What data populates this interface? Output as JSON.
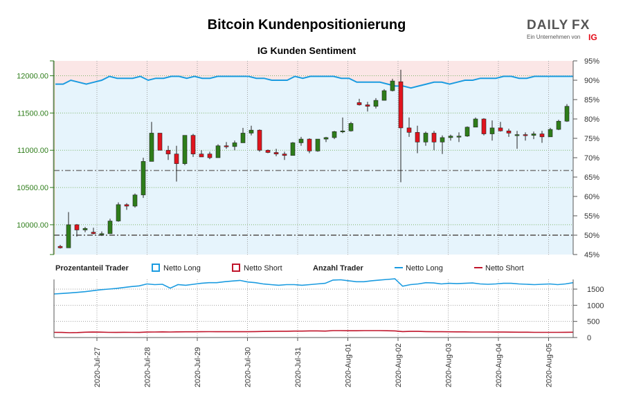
{
  "header": {
    "title": "Bitcoin Kundenpositionierung",
    "subtitle": "IG Kunden Sentiment"
  },
  "logo": {
    "text_left": "DAILY",
    "text_right": "FX",
    "tagline": "Ein Unternehmen von",
    "ig": "IG",
    "accent_color": "#e30613"
  },
  "legend": {
    "pct_header": "Prozentanteil Trader",
    "pct_long": "Netto Long",
    "pct_short": "Netto Short",
    "count_header": "Anzahl Trader",
    "count_long": "Netto Long",
    "count_short": "Netto Short"
  },
  "colors": {
    "long": "#1a9be0",
    "short": "#c0142a",
    "up_candle": "#2e7d1a",
    "down_candle": "#e0141e",
    "long_fill": "#e6f4fc",
    "short_fill": "#fbe6e6"
  },
  "chart_data": [
    {
      "type": "candlestick",
      "title": "IG Kunden Sentiment",
      "y_left_ticks": [
        "10000.00",
        "10500.00",
        "11000.00",
        "11500.00",
        "12000.00"
      ],
      "y_right_ticks": [
        "45%",
        "50%",
        "55%",
        "60%",
        "65%",
        "70%",
        "75%",
        "80%",
        "85%",
        "90%",
        "95%"
      ],
      "ylim_price": [
        9600,
        12200
      ],
      "ylim_pct": [
        45,
        95
      ],
      "grid": true,
      "reference_lines_pct": [
        50,
        66.7
      ],
      "net_long_pct": [
        89,
        89,
        90,
        89.5,
        89,
        89.5,
        90,
        91,
        90.5,
        90.5,
        90.5,
        91,
        90,
        90.5,
        90.5,
        91,
        91,
        90.5,
        91,
        90.5,
        90.5,
        91,
        91,
        91,
        91,
        91,
        90.5,
        90.5,
        90,
        90,
        90,
        91,
        90.5,
        91,
        91,
        91,
        91,
        90.5,
        90.5,
        89.5,
        89.5,
        89.5,
        89.5,
        89,
        88.5,
        88.5,
        88,
        88.5,
        89,
        89.5,
        89.5,
        89,
        89.5,
        90,
        90,
        90.5,
        90.5,
        90.5,
        91,
        91,
        90.5,
        90.5,
        91,
        91,
        91,
        91,
        91,
        91
      ],
      "candles": [
        [
          9710,
          9730,
          9680,
          9690
        ],
        [
          9690,
          10170,
          9690,
          10000
        ],
        [
          10000,
          10010,
          9840,
          9930
        ],
        [
          9930,
          9970,
          9900,
          9950
        ],
        [
          9900,
          9960,
          9870,
          9880
        ],
        [
          9880,
          9910,
          9850,
          9880
        ],
        [
          9880,
          10080,
          9880,
          10050
        ],
        [
          10050,
          10300,
          10040,
          10270
        ],
        [
          10270,
          10290,
          10200,
          10250
        ],
        [
          10250,
          10420,
          10230,
          10400
        ],
        [
          10400,
          10900,
          10360,
          10850
        ],
        [
          10850,
          11380,
          10850,
          11230
        ],
        [
          11230,
          11230,
          11000,
          11000
        ],
        [
          11000,
          11060,
          10870,
          10950
        ],
        [
          10950,
          11060,
          10580,
          10820
        ],
        [
          10820,
          11200,
          10800,
          11200
        ],
        [
          11200,
          11220,
          10910,
          10950
        ],
        [
          10950,
          11000,
          10920,
          10910
        ],
        [
          10950,
          10980,
          10880,
          10900
        ],
        [
          10900,
          11080,
          10900,
          11060
        ],
        [
          11060,
          11110,
          11020,
          11050
        ],
        [
          11050,
          11130,
          11000,
          11100
        ],
        [
          11100,
          11300,
          11100,
          11230
        ],
        [
          11230,
          11330,
          11200,
          11270
        ],
        [
          11270,
          11280,
          10980,
          11000
        ],
        [
          11000,
          11010,
          10960,
          10970
        ],
        [
          10970,
          11020,
          10920,
          10950
        ],
        [
          10950,
          10980,
          10870,
          10930
        ],
        [
          10930,
          11110,
          10930,
          11100
        ],
        [
          11100,
          11180,
          11060,
          11150
        ],
        [
          11150,
          11160,
          10960,
          10990
        ],
        [
          10990,
          11150,
          10980,
          11150
        ],
        [
          11150,
          11180,
          11110,
          11170
        ],
        [
          11170,
          11260,
          11150,
          11250
        ],
        [
          11250,
          11440,
          11230,
          11260
        ],
        [
          11260,
          11380,
          11250,
          11360
        ],
        [
          11640,
          11690,
          11600,
          11610
        ],
        [
          11610,
          11650,
          11520,
          11590
        ],
        [
          11590,
          11700,
          11560,
          11670
        ],
        [
          11670,
          11820,
          11670,
          11800
        ],
        [
          11800,
          11960,
          11790,
          11930
        ],
        [
          11920,
          12080,
          10570,
          11300
        ],
        [
          11300,
          11440,
          11180,
          11240
        ],
        [
          11240,
          11330,
          10960,
          11110
        ],
        [
          11110,
          11250,
          11060,
          11230
        ],
        [
          11230,
          11260,
          11000,
          11110
        ],
        [
          11110,
          11200,
          10950,
          11170
        ],
        [
          11170,
          11210,
          11130,
          11190
        ],
        [
          11190,
          11240,
          11110,
          11190
        ],
        [
          11190,
          11320,
          11180,
          11310
        ],
        [
          11310,
          11440,
          11310,
          11420
        ],
        [
          11420,
          11430,
          11200,
          11220
        ],
        [
          11220,
          11400,
          11130,
          11300
        ],
        [
          11300,
          11380,
          11250,
          11260
        ],
        [
          11260,
          11290,
          11180,
          11230
        ],
        [
          11210,
          11260,
          11020,
          11210
        ],
        [
          11210,
          11240,
          11130,
          11200
        ],
        [
          11200,
          11250,
          11150,
          11220
        ],
        [
          11220,
          11260,
          11100,
          11180
        ],
        [
          11180,
          11300,
          11180,
          11280
        ],
        [
          11280,
          11410,
          11270,
          11390
        ],
        [
          11390,
          11620,
          11380,
          11590
        ]
      ]
    },
    {
      "type": "line",
      "y_ticks": [
        "0",
        "500",
        "1000",
        "1500"
      ],
      "ylim": [
        0,
        1800
      ],
      "x_tick_labels": [
        "2020-Jul-27",
        "2020-Jul-28",
        "2020-Jul-29",
        "2020-Jul-30",
        "2020-Jul-31",
        "2020-Aug-01",
        "2020-Aug-02",
        "2020-Aug-03",
        "2020-Aug-04",
        "2020-Aug-05"
      ],
      "series": [
        {
          "name": "Netto Long",
          "values": [
            1350,
            1365,
            1380,
            1400,
            1420,
            1450,
            1480,
            1500,
            1520,
            1550,
            1580,
            1600,
            1660,
            1640,
            1650,
            1530,
            1640,
            1620,
            1650,
            1680,
            1700,
            1700,
            1730,
            1750,
            1770,
            1720,
            1700,
            1660,
            1640,
            1620,
            1640,
            1640,
            1620,
            1640,
            1660,
            1680,
            1780,
            1790,
            1760,
            1730,
            1730,
            1760,
            1780,
            1800,
            1820,
            1590,
            1640,
            1660,
            1700,
            1690,
            1660,
            1680,
            1670,
            1680,
            1690,
            1660,
            1650,
            1660,
            1680,
            1680,
            1660,
            1650,
            1640,
            1650,
            1660,
            1640,
            1660,
            1700
          ]
        },
        {
          "name": "Netto Short",
          "values": [
            160,
            158,
            150,
            155,
            165,
            170,
            168,
            160,
            158,
            162,
            160,
            158,
            170,
            172,
            175,
            172,
            175,
            178,
            178,
            180,
            182,
            180,
            180,
            180,
            180,
            180,
            185,
            188,
            190,
            195,
            195,
            200,
            200,
            205,
            205,
            200,
            215,
            215,
            210,
            210,
            215,
            215,
            215,
            210,
            205,
            185,
            190,
            190,
            185,
            180,
            180,
            178,
            175,
            175,
            172,
            172,
            172,
            170,
            170,
            168,
            165,
            165,
            160,
            160,
            160,
            160,
            162,
            165
          ]
        }
      ]
    }
  ]
}
